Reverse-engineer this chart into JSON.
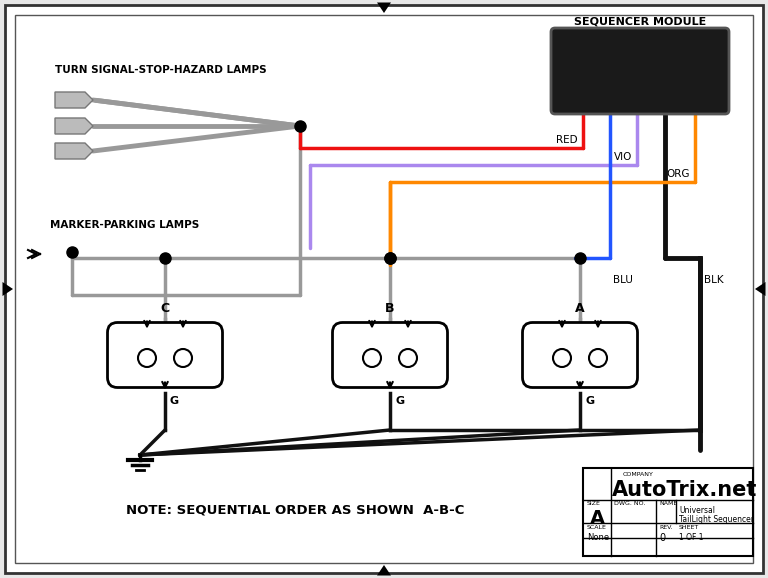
{
  "bg_color": "#e8e8e8",
  "wire_colors": {
    "red": "#ee1111",
    "violet": "#aa88ee",
    "orange": "#ff8800",
    "blue": "#2255ff",
    "black": "#111111",
    "gray": "#999999",
    "dark_gray": "#555555"
  },
  "labels": {
    "turn_signal": "TURN SIGNAL-STOP-HAZARD LAMPS",
    "marker_parking": "MARKER-PARKING LAMPS",
    "sequencer": "SEQUENCER MODULE",
    "note": "NOTE: SEQUENTIAL ORDER AS SHOWN  A-B-C",
    "red": "RED",
    "vio": "VIO",
    "org": "ORG",
    "blu": "BLU",
    "blk": "BLK",
    "lamp_a": "A",
    "lamp_b": "B",
    "lamp_c": "C",
    "g": "G",
    "company": "AutoTrix.net",
    "name_line1": "Universal",
    "name_line2": "TailLight Sequencer",
    "size": "A",
    "scale": "None",
    "rev": "0",
    "sheet": "1 OF 1"
  }
}
